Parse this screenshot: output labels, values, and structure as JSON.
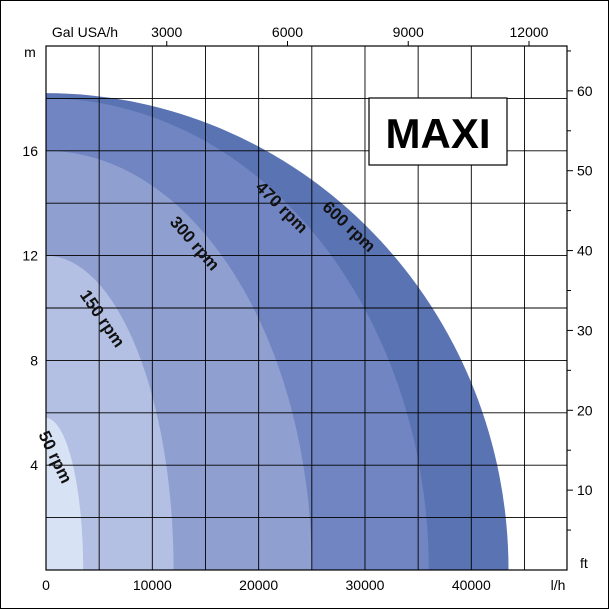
{
  "chart_data": {
    "type": "area",
    "title": "MAXI",
    "axes": {
      "bottom": {
        "unit": "l/h",
        "ticks": [
          0,
          10000,
          20000,
          30000,
          40000
        ],
        "range": [
          0,
          49000
        ]
      },
      "top": {
        "unit": "Gal USA/h",
        "ticks": [
          3000,
          6000,
          9000,
          12000
        ]
      },
      "left": {
        "unit": "m",
        "ticks": [
          4,
          8,
          12,
          16
        ],
        "range": [
          0,
          20
        ]
      },
      "right": {
        "unit": "ft",
        "ticks": [
          10,
          20,
          30,
          40,
          50,
          60
        ]
      }
    },
    "grid": true,
    "series": [
      {
        "name": "600 rpm",
        "color": "#5a73b3",
        "max_head_m": 18.2,
        "max_flow_lh": 43500
      },
      {
        "name": "470 rpm",
        "color": "#7185c2",
        "max_head_m": 18.0,
        "max_flow_lh": 36000
      },
      {
        "name": "300 rpm",
        "color": "#8f9fd0",
        "max_head_m": 16.0,
        "max_flow_lh": 25000
      },
      {
        "name": "150 rpm",
        "color": "#b3bfe3",
        "max_head_m": 12.0,
        "max_flow_lh": 12000
      },
      {
        "name": "50 rpm",
        "color": "#d8e2f5",
        "max_head_m": 5.8,
        "max_flow_lh": 3500
      }
    ]
  }
}
